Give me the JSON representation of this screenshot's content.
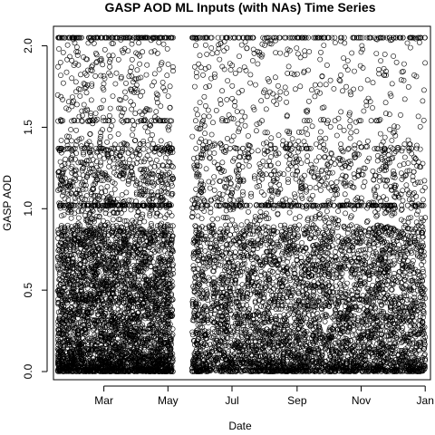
{
  "chart_data": {
    "type": "scatter",
    "title": "GASP AOD ML Inputs (with NAs) Time Series",
    "xlabel": "Date",
    "ylabel": "GASP AOD",
    "x_ticks": [
      {
        "date": "2007-03-01",
        "label": "Mar"
      },
      {
        "date": "2007-05-01",
        "label": "May"
      },
      {
        "date": "2007-07-01",
        "label": "Jul"
      },
      {
        "date": "2007-09-01",
        "label": "Sep"
      },
      {
        "date": "2007-11-01",
        "label": "Nov"
      },
      {
        "date": "2008-01-01",
        "label": "Jan"
      }
    ],
    "y_ticks": [
      0.0,
      0.5,
      1.0,
      1.5,
      2.0
    ],
    "y_tick_labels": [
      "0.0",
      "0.5",
      "1.0",
      "1.5",
      "2.0"
    ],
    "xlim": [
      "2007-01-12",
      "2008-01-06"
    ],
    "ylim": [
      -0.05,
      2.12
    ],
    "grid": false,
    "marker": "open-circle",
    "marker_color": "#000000",
    "data_gap": [
      "2007-05-07",
      "2007-05-23"
    ],
    "dense_band_values": [
      1.02,
      2.05,
      1.37,
      1.54
    ],
    "description_segments": [
      {
        "start": "2007-01-16",
        "end": "2007-05-06",
        "density": "very-high"
      },
      {
        "start": "2007-05-24",
        "end": "2008-01-01",
        "density": "high"
      }
    ]
  }
}
